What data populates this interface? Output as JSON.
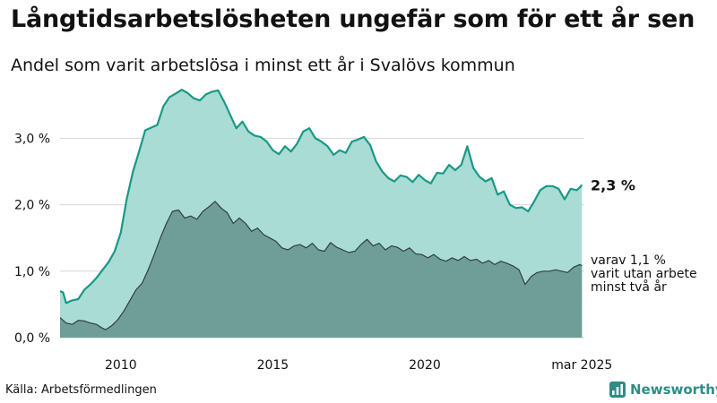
{
  "title": "Långtidsarbetslösheten ungefär som för ett år sen",
  "subtitle": "Andel som varit arbetslösa i minst ett år i Svalövs kommun",
  "source": "Källa: Arbetsförmedlingen",
  "brand": {
    "name": "Newsworthy",
    "icon": "newsworthy-logo-icon",
    "color": "#2f8c86"
  },
  "colors": {
    "total_fill": "#a9dcd5",
    "total_line": "#1a9886",
    "sub_fill": "#6f9e99",
    "sub_line": "#2f3f3d",
    "grid": "#d6d6d6"
  },
  "chart_data": {
    "type": "area",
    "x_unit": "year",
    "xlim": [
      2008.0,
      2025.25
    ],
    "ylim": [
      0,
      3.8
    ],
    "y_ticks": [
      {
        "value": 0,
        "label": "0,0 %"
      },
      {
        "value": 1,
        "label": "1,0 %"
      },
      {
        "value": 2,
        "label": "2,0 %"
      },
      {
        "value": 3,
        "label": "3,0 %"
      }
    ],
    "x_ticks": [
      {
        "value": 2010,
        "label": "2010"
      },
      {
        "value": 2015,
        "label": "2015"
      },
      {
        "value": 2020,
        "label": "2020"
      },
      {
        "value": 2025.17,
        "label": "mar 2025"
      }
    ],
    "grid": true,
    "series": [
      {
        "label": "2,3 %",
        "last_value": 2.3,
        "points": [
          [
            2008.0,
            0.7
          ],
          [
            2008.1,
            0.68
          ],
          [
            2008.2,
            0.52
          ],
          [
            2008.4,
            0.56
          ],
          [
            2008.6,
            0.58
          ],
          [
            2008.8,
            0.72
          ],
          [
            2009.0,
            0.8
          ],
          [
            2009.2,
            0.9
          ],
          [
            2009.4,
            1.02
          ],
          [
            2009.6,
            1.14
          ],
          [
            2009.8,
            1.3
          ],
          [
            2010.0,
            1.58
          ],
          [
            2010.2,
            2.1
          ],
          [
            2010.4,
            2.5
          ],
          [
            2010.6,
            2.8
          ],
          [
            2010.8,
            3.12
          ],
          [
            2011.0,
            3.16
          ],
          [
            2011.2,
            3.2
          ],
          [
            2011.4,
            3.48
          ],
          [
            2011.6,
            3.62
          ],
          [
            2011.8,
            3.67
          ],
          [
            2012.0,
            3.73
          ],
          [
            2012.2,
            3.68
          ],
          [
            2012.4,
            3.6
          ],
          [
            2012.6,
            3.57
          ],
          [
            2012.8,
            3.66
          ],
          [
            2013.0,
            3.7
          ],
          [
            2013.2,
            3.72
          ],
          [
            2013.4,
            3.55
          ],
          [
            2013.6,
            3.35
          ],
          [
            2013.8,
            3.15
          ],
          [
            2014.0,
            3.25
          ],
          [
            2014.2,
            3.1
          ],
          [
            2014.4,
            3.04
          ],
          [
            2014.6,
            3.02
          ],
          [
            2014.8,
            2.95
          ],
          [
            2015.0,
            2.82
          ],
          [
            2015.2,
            2.76
          ],
          [
            2015.4,
            2.88
          ],
          [
            2015.6,
            2.8
          ],
          [
            2015.8,
            2.92
          ],
          [
            2016.0,
            3.1
          ],
          [
            2016.2,
            3.15
          ],
          [
            2016.4,
            3.0
          ],
          [
            2016.6,
            2.95
          ],
          [
            2016.8,
            2.88
          ],
          [
            2017.0,
            2.75
          ],
          [
            2017.2,
            2.82
          ],
          [
            2017.4,
            2.78
          ],
          [
            2017.6,
            2.95
          ],
          [
            2017.8,
            2.98
          ],
          [
            2018.0,
            3.02
          ],
          [
            2018.2,
            2.9
          ],
          [
            2018.4,
            2.65
          ],
          [
            2018.6,
            2.5
          ],
          [
            2018.8,
            2.4
          ],
          [
            2019.0,
            2.35
          ],
          [
            2019.2,
            2.44
          ],
          [
            2019.4,
            2.42
          ],
          [
            2019.6,
            2.34
          ],
          [
            2019.8,
            2.45
          ],
          [
            2020.0,
            2.37
          ],
          [
            2020.2,
            2.32
          ],
          [
            2020.4,
            2.48
          ],
          [
            2020.6,
            2.47
          ],
          [
            2020.8,
            2.6
          ],
          [
            2021.0,
            2.52
          ],
          [
            2021.2,
            2.6
          ],
          [
            2021.4,
            2.88
          ],
          [
            2021.6,
            2.55
          ],
          [
            2021.8,
            2.42
          ],
          [
            2022.0,
            2.35
          ],
          [
            2022.2,
            2.4
          ],
          [
            2022.4,
            2.15
          ],
          [
            2022.6,
            2.2
          ],
          [
            2022.8,
            2.0
          ],
          [
            2023.0,
            1.95
          ],
          [
            2023.2,
            1.96
          ],
          [
            2023.4,
            1.9
          ],
          [
            2023.6,
            2.05
          ],
          [
            2023.8,
            2.22
          ],
          [
            2024.0,
            2.28
          ],
          [
            2024.2,
            2.28
          ],
          [
            2024.4,
            2.24
          ],
          [
            2024.6,
            2.08
          ],
          [
            2024.8,
            2.24
          ],
          [
            2025.0,
            2.22
          ],
          [
            2025.1,
            2.26
          ],
          [
            2025.17,
            2.3
          ]
        ]
      },
      {
        "label": "varav 1,1 %\nvarit utan arbete\nminst två år",
        "last_value": 1.1,
        "points": [
          [
            2008.0,
            0.3
          ],
          [
            2008.2,
            0.22
          ],
          [
            2008.4,
            0.2
          ],
          [
            2008.6,
            0.26
          ],
          [
            2008.8,
            0.25
          ],
          [
            2009.0,
            0.22
          ],
          [
            2009.2,
            0.2
          ],
          [
            2009.4,
            0.14
          ],
          [
            2009.5,
            0.12
          ],
          [
            2009.7,
            0.18
          ],
          [
            2009.9,
            0.27
          ],
          [
            2010.1,
            0.4
          ],
          [
            2010.3,
            0.56
          ],
          [
            2010.5,
            0.72
          ],
          [
            2010.7,
            0.82
          ],
          [
            2010.9,
            1.02
          ],
          [
            2011.1,
            1.25
          ],
          [
            2011.3,
            1.5
          ],
          [
            2011.5,
            1.72
          ],
          [
            2011.7,
            1.9
          ],
          [
            2011.9,
            1.92
          ],
          [
            2012.1,
            1.8
          ],
          [
            2012.3,
            1.83
          ],
          [
            2012.5,
            1.78
          ],
          [
            2012.7,
            1.9
          ],
          [
            2012.9,
            1.97
          ],
          [
            2013.1,
            2.05
          ],
          [
            2013.3,
            1.95
          ],
          [
            2013.5,
            1.88
          ],
          [
            2013.7,
            1.72
          ],
          [
            2013.9,
            1.8
          ],
          [
            2014.1,
            1.72
          ],
          [
            2014.3,
            1.6
          ],
          [
            2014.5,
            1.65
          ],
          [
            2014.7,
            1.55
          ],
          [
            2014.9,
            1.5
          ],
          [
            2015.1,
            1.45
          ],
          [
            2015.3,
            1.35
          ],
          [
            2015.5,
            1.32
          ],
          [
            2015.7,
            1.38
          ],
          [
            2015.9,
            1.4
          ],
          [
            2016.1,
            1.35
          ],
          [
            2016.3,
            1.42
          ],
          [
            2016.5,
            1.32
          ],
          [
            2016.7,
            1.3
          ],
          [
            2016.9,
            1.43
          ],
          [
            2017.1,
            1.36
          ],
          [
            2017.3,
            1.32
          ],
          [
            2017.5,
            1.28
          ],
          [
            2017.7,
            1.3
          ],
          [
            2017.9,
            1.4
          ],
          [
            2018.1,
            1.48
          ],
          [
            2018.3,
            1.38
          ],
          [
            2018.5,
            1.42
          ],
          [
            2018.7,
            1.32
          ],
          [
            2018.9,
            1.38
          ],
          [
            2019.1,
            1.36
          ],
          [
            2019.3,
            1.3
          ],
          [
            2019.5,
            1.35
          ],
          [
            2019.7,
            1.26
          ],
          [
            2019.9,
            1.25
          ],
          [
            2020.1,
            1.2
          ],
          [
            2020.3,
            1.25
          ],
          [
            2020.5,
            1.18
          ],
          [
            2020.7,
            1.15
          ],
          [
            2020.9,
            1.2
          ],
          [
            2021.1,
            1.16
          ],
          [
            2021.3,
            1.22
          ],
          [
            2021.5,
            1.16
          ],
          [
            2021.7,
            1.18
          ],
          [
            2021.9,
            1.12
          ],
          [
            2022.1,
            1.16
          ],
          [
            2022.3,
            1.1
          ],
          [
            2022.5,
            1.15
          ],
          [
            2022.7,
            1.12
          ],
          [
            2022.9,
            1.08
          ],
          [
            2023.1,
            1.02
          ],
          [
            2023.3,
            0.8
          ],
          [
            2023.5,
            0.92
          ],
          [
            2023.7,
            0.98
          ],
          [
            2023.9,
            1.0
          ],
          [
            2024.1,
            1.0
          ],
          [
            2024.3,
            1.02
          ],
          [
            2024.5,
            1.0
          ],
          [
            2024.7,
            0.98
          ],
          [
            2024.9,
            1.06
          ],
          [
            2025.1,
            1.1
          ],
          [
            2025.17,
            1.08
          ]
        ]
      }
    ]
  }
}
